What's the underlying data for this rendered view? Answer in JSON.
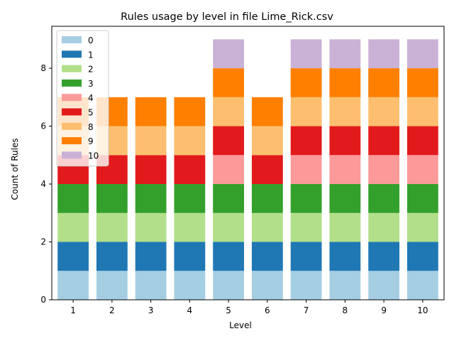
{
  "chart_data": {
    "type": "bar",
    "stacked": true,
    "title": "Rules usage by level in file Lime_Rick.csv",
    "xlabel": "Level",
    "ylabel": "Count of Rules",
    "categories": [
      "1",
      "2",
      "3",
      "4",
      "5",
      "6",
      "7",
      "8",
      "9",
      "10"
    ],
    "ylim": [
      0,
      9.45
    ],
    "yticks": [
      0,
      2,
      4,
      6,
      8
    ],
    "grid": false,
    "legend_position": "top-left",
    "series": [
      {
        "name": "0",
        "color": "#a6cee3",
        "values": [
          1,
          1,
          1,
          1,
          1,
          1,
          1,
          1,
          1,
          1
        ]
      },
      {
        "name": "1",
        "color": "#1f78b4",
        "values": [
          1,
          1,
          1,
          1,
          1,
          1,
          1,
          1,
          1,
          1
        ]
      },
      {
        "name": "2",
        "color": "#b2df8a",
        "values": [
          1,
          1,
          1,
          1,
          1,
          1,
          1,
          1,
          1,
          1
        ]
      },
      {
        "name": "3",
        "color": "#33a02c",
        "values": [
          1,
          1,
          1,
          1,
          1,
          1,
          1,
          1,
          1,
          1
        ]
      },
      {
        "name": "4",
        "color": "#fb9a99",
        "values": [
          0,
          0,
          0,
          0,
          1,
          0,
          1,
          1,
          1,
          1
        ]
      },
      {
        "name": "5",
        "color": "#e31a1c",
        "values": [
          1,
          1,
          1,
          1,
          1,
          1,
          1,
          1,
          1,
          1
        ]
      },
      {
        "name": "8",
        "color": "#fdbf6f",
        "values": [
          1,
          1,
          1,
          1,
          1,
          1,
          1,
          1,
          1,
          1
        ]
      },
      {
        "name": "9",
        "color": "#ff7f00",
        "values": [
          1,
          1,
          1,
          1,
          1,
          1,
          1,
          1,
          1,
          1
        ]
      },
      {
        "name": "10",
        "color": "#cab2d6",
        "values": [
          0,
          0,
          0,
          0,
          1,
          0,
          1,
          1,
          1,
          1
        ]
      }
    ]
  }
}
